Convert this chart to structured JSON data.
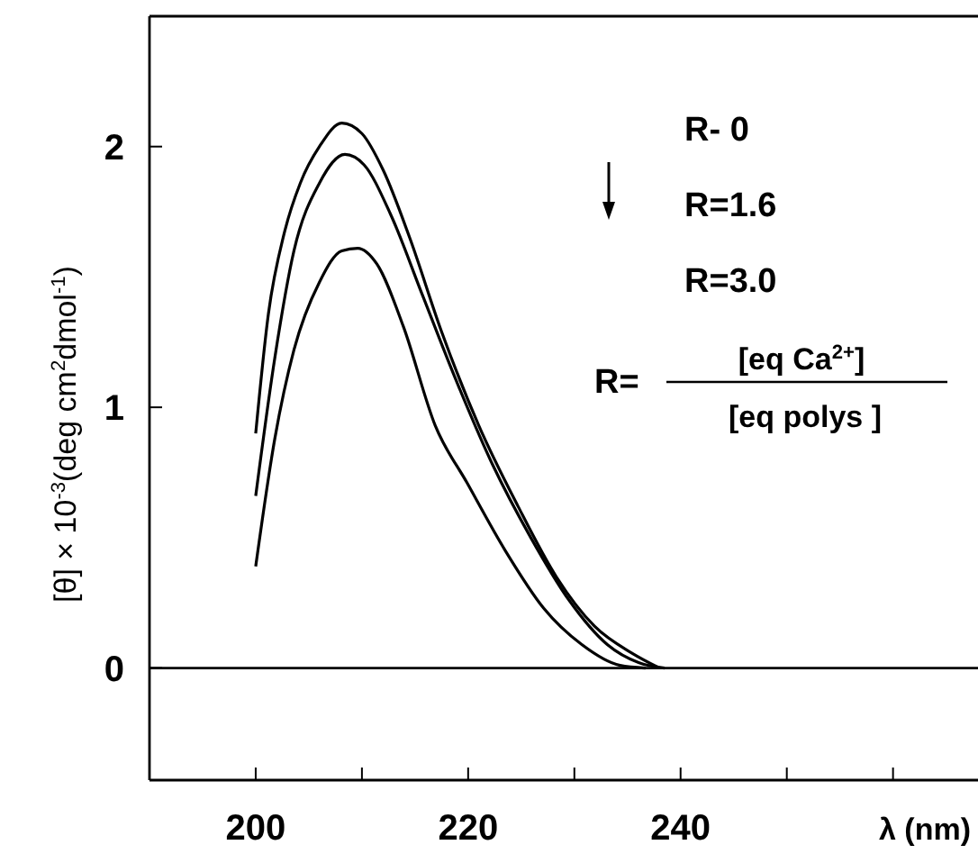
{
  "chart_data": {
    "type": "line",
    "xlabel": "λ (nm)",
    "ylabel": "[θ] × 10$^{-3}$(deg cm$^{2}$dmol$^{-1}$)",
    "xlim": [
      190,
      268
    ],
    "xticks": [
      200,
      {
        "value": 210,
        "label": null
      },
      220,
      {
        "value": 230,
        "label": null
      },
      240,
      {
        "value": 250,
        "label": null
      },
      {
        "value": 260,
        "label": null
      }
    ],
    "ylim": [
      -0.43,
      2.5
    ],
    "yticks": [
      0,
      1,
      2
    ],
    "ref_lines": [
      {
        "axis": "y",
        "value": 0,
        "color": "#000000"
      }
    ],
    "annotations": [
      "R- 0",
      "R=1.6",
      "R=3.0",
      "R=",
      "[eq Ca$^{2+}$]",
      "[eq polys ]"
    ],
    "marker": "none",
    "line_style": "solid",
    "series": [
      {
        "color": "#000000",
        "x": [
          200,
          201.2,
          202.7,
          204.2,
          206,
          208.1,
          210,
          212,
          214.5,
          217.5,
          221,
          224.7,
          228.3,
          231.9,
          235.5,
          238
        ],
        "values": [
          0.9,
          1.36,
          1.67,
          1.86,
          2.0,
          2.09,
          2.05,
          1.91,
          1.65,
          1.29,
          0.93,
          0.62,
          0.35,
          0.16,
          0.055,
          0
        ]
      },
      {
        "color": "#000000",
        "x": [
          200,
          201.8,
          203.6,
          206,
          208.4,
          210.2,
          212.7,
          215.7,
          218.7,
          222.3,
          225.9,
          229.5,
          233.1,
          236.1,
          238.5
        ],
        "values": [
          0.66,
          1.19,
          1.6,
          1.86,
          1.97,
          1.93,
          1.74,
          1.43,
          1.12,
          0.78,
          0.5,
          0.26,
          0.09,
          0.02,
          0
        ]
      },
      {
        "color": "#000000",
        "x": [
          200,
          201.8,
          203.6,
          206,
          208.1,
          209.6,
          211.4,
          213.9,
          216.9,
          219.9,
          223.5,
          227.1,
          230.7,
          234.3,
          236.7
        ],
        "values": [
          0.39,
          0.88,
          1.22,
          1.48,
          1.6,
          1.61,
          1.55,
          1.31,
          0.93,
          0.71,
          0.45,
          0.23,
          0.09,
          0.01,
          0
        ]
      }
    ]
  }
}
